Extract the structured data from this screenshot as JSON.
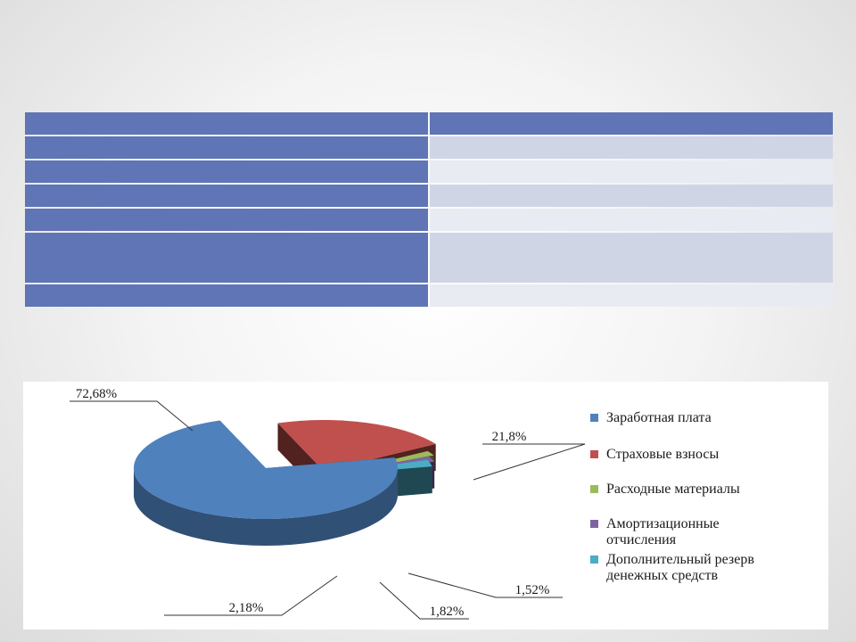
{
  "table": {
    "header": [
      "",
      ""
    ],
    "rows": [
      [
        "",
        ""
      ],
      [
        "",
        ""
      ],
      [
        "",
        ""
      ],
      [
        "",
        ""
      ],
      [
        "",
        ""
      ],
      [
        "",
        ""
      ]
    ]
  },
  "colors": {
    "table_header": "#5f75b5",
    "table_row_odd": "#d0d5e6",
    "table_row_even": "#e9ebf3"
  },
  "chart_data": {
    "type": "pie",
    "title": "",
    "legend_position": "right",
    "categories": [
      "Заработная плата",
      "Страховые взносы",
      "Расходные материалы",
      "Амортизационные отчисления",
      "Дополнительный резерв денежных средств"
    ],
    "legend_lines": [
      [
        "Заработная плата"
      ],
      [
        "Страховые взносы"
      ],
      [
        "Расходные материалы"
      ],
      [
        "Амортизационные",
        "отчисления"
      ],
      [
        "Дополнительный резерв",
        "денежных средств"
      ]
    ],
    "values": [
      72.68,
      21.8,
      1.52,
      1.82,
      2.18
    ],
    "data_labels": [
      "72,68%",
      "21,8%",
      "1,52%",
      "1,82%",
      "2,18%"
    ],
    "colors": [
      "#4f81bd",
      "#c0504d",
      "#9bbb59",
      "#8064a2",
      "#4bacc6"
    ]
  }
}
